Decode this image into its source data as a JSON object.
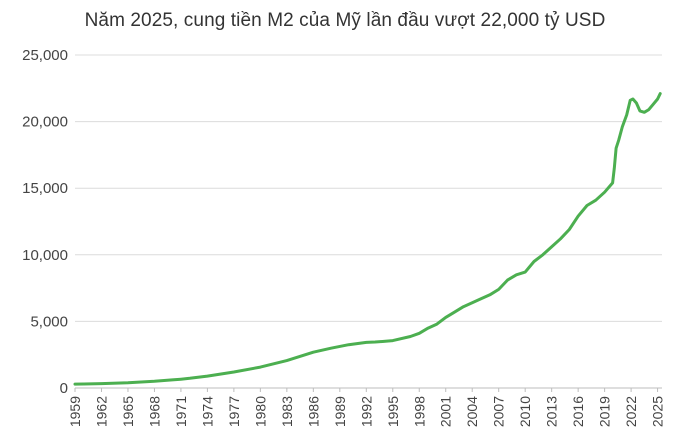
{
  "chart_data": {
    "type": "line",
    "title": "Năm 2025, cung tiền M2 của Mỹ lần đầu vượt 22,000 tỷ USD",
    "xlabel": "",
    "ylabel": "",
    "ylim": [
      0,
      25000
    ],
    "xlim": [
      1959,
      2025.5
    ],
    "yticks": [
      0,
      5000,
      10000,
      15000,
      20000,
      25000
    ],
    "ytick_labels": [
      "0",
      "5,000",
      "10,000",
      "15,000",
      "20,000",
      "25,000"
    ],
    "xticks": [
      1959,
      1962,
      1965,
      1968,
      1971,
      1974,
      1977,
      1980,
      1983,
      1986,
      1989,
      1992,
      1995,
      1998,
      2001,
      2004,
      2007,
      2010,
      2013,
      2016,
      2019,
      2022,
      2025
    ],
    "xtick_labels": [
      "1959",
      "1962",
      "1965",
      "1968",
      "1971",
      "1974",
      "1977",
      "1980",
      "1983",
      "1986",
      "1989",
      "1992",
      "1995",
      "1998",
      "2001",
      "2004",
      "2007",
      "2010",
      "2013",
      "2016",
      "2019",
      "2022",
      "2025"
    ],
    "grid": true,
    "legend": "none",
    "line_color": "#4caf50",
    "series": [
      {
        "name": "M2",
        "x": [
          1959,
          1960,
          1962,
          1965,
          1968,
          1970,
          1971,
          1972,
          1974,
          1977,
          1980,
          1983,
          1986,
          1988,
          1990,
          1992,
          1993,
          1994,
          1995,
          1997,
          1998,
          1999,
          2000,
          2001,
          2002,
          2003,
          2004,
          2005,
          2006,
          2007,
          2008,
          2009,
          2010,
          2011,
          2012,
          2013,
          2014,
          2015,
          2016,
          2017,
          2018,
          2019,
          2019.9,
          2020.1,
          2020.3,
          2020.6,
          2021,
          2021.5,
          2021.9,
          2022.2,
          2022.6,
          2023,
          2023.5,
          2024,
          2024.5,
          2025,
          2025.3
        ],
        "y": [
          290,
          300,
          330,
          390,
          500,
          610,
          660,
          730,
          890,
          1200,
          1570,
          2060,
          2690,
          2990,
          3250,
          3420,
          3450,
          3500,
          3560,
          3870,
          4110,
          4500,
          4800,
          5300,
          5700,
          6100,
          6400,
          6700,
          7000,
          7400,
          8100,
          8500,
          8700,
          9500,
          10000,
          10600,
          11200,
          11900,
          12900,
          13700,
          14100,
          14700,
          15400,
          16500,
          18000,
          18600,
          19600,
          20500,
          21600,
          21700,
          21400,
          20800,
          20700,
          20900,
          21300,
          21700,
          22100
        ]
      }
    ]
  }
}
